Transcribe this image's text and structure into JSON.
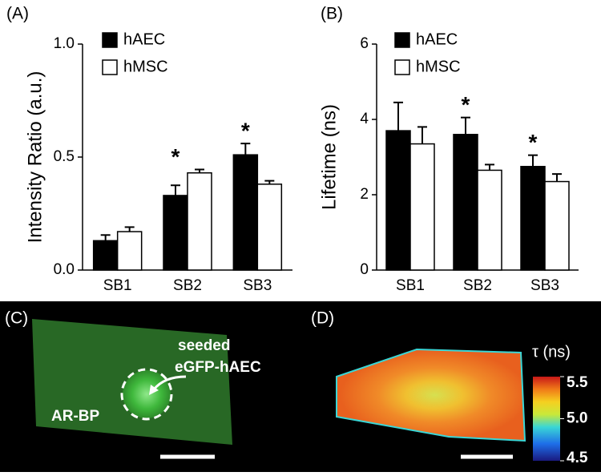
{
  "chart_data": [
    {
      "type": "bar",
      "title": "(A)",
      "y_label": "Intensity Ratio (a.u.)",
      "categories": [
        "SB1",
        "SB2",
        "SB3"
      ],
      "series": [
        {
          "name": "hAEC",
          "color": "#000000",
          "values": [
            0.13,
            0.33,
            0.51
          ],
          "errors": [
            0.025,
            0.045,
            0.05
          ]
        },
        {
          "name": "hMSC",
          "color": "#ffffff",
          "values": [
            0.17,
            0.43,
            0.38
          ],
          "errors": [
            0.02,
            0.015,
            0.015
          ]
        }
      ],
      "ylim": [
        0,
        1
      ],
      "yticks": [
        {
          "value": 0,
          "label": "0.0"
        },
        {
          "value": 0.5,
          "label": "0.5"
        },
        {
          "value": 1,
          "label": "1.0"
        }
      ],
      "annotations": [
        {
          "text": "*",
          "x": "SB2"
        },
        {
          "text": "*",
          "x": "SB3"
        }
      ]
    },
    {
      "type": "bar",
      "title": "(B)",
      "y_label": "Lifetime (ns)",
      "categories": [
        "SB1",
        "SB2",
        "SB3"
      ],
      "series": [
        {
          "name": "hAEC",
          "color": "#000000",
          "values": [
            3.7,
            3.6,
            2.75
          ],
          "errors": [
            0.75,
            0.45,
            0.3
          ]
        },
        {
          "name": "hMSC",
          "color": "#ffffff",
          "values": [
            3.35,
            2.65,
            2.35
          ],
          "errors": [
            0.45,
            0.15,
            0.2
          ]
        }
      ],
      "ylim": [
        0,
        6
      ],
      "yticks": [
        0,
        2,
        4,
        6
      ],
      "annotations": [
        {
          "text": "*",
          "x": "SB2"
        },
        {
          "text": "*",
          "x": "SB3"
        }
      ]
    }
  ],
  "images": [
    {
      "label": "(C)",
      "annotations": [
        "seeded",
        "eGFP-hAEC",
        "AR-BP"
      ]
    },
    {
      "label": "(D)",
      "colorbar": {
        "title": "τ (ns)",
        "clim": [
          4.5,
          5.5
        ],
        "ticks": [
          5.5,
          {
            "value": 5,
            "label": "5.0"
          },
          4.5
        ]
      }
    }
  ]
}
